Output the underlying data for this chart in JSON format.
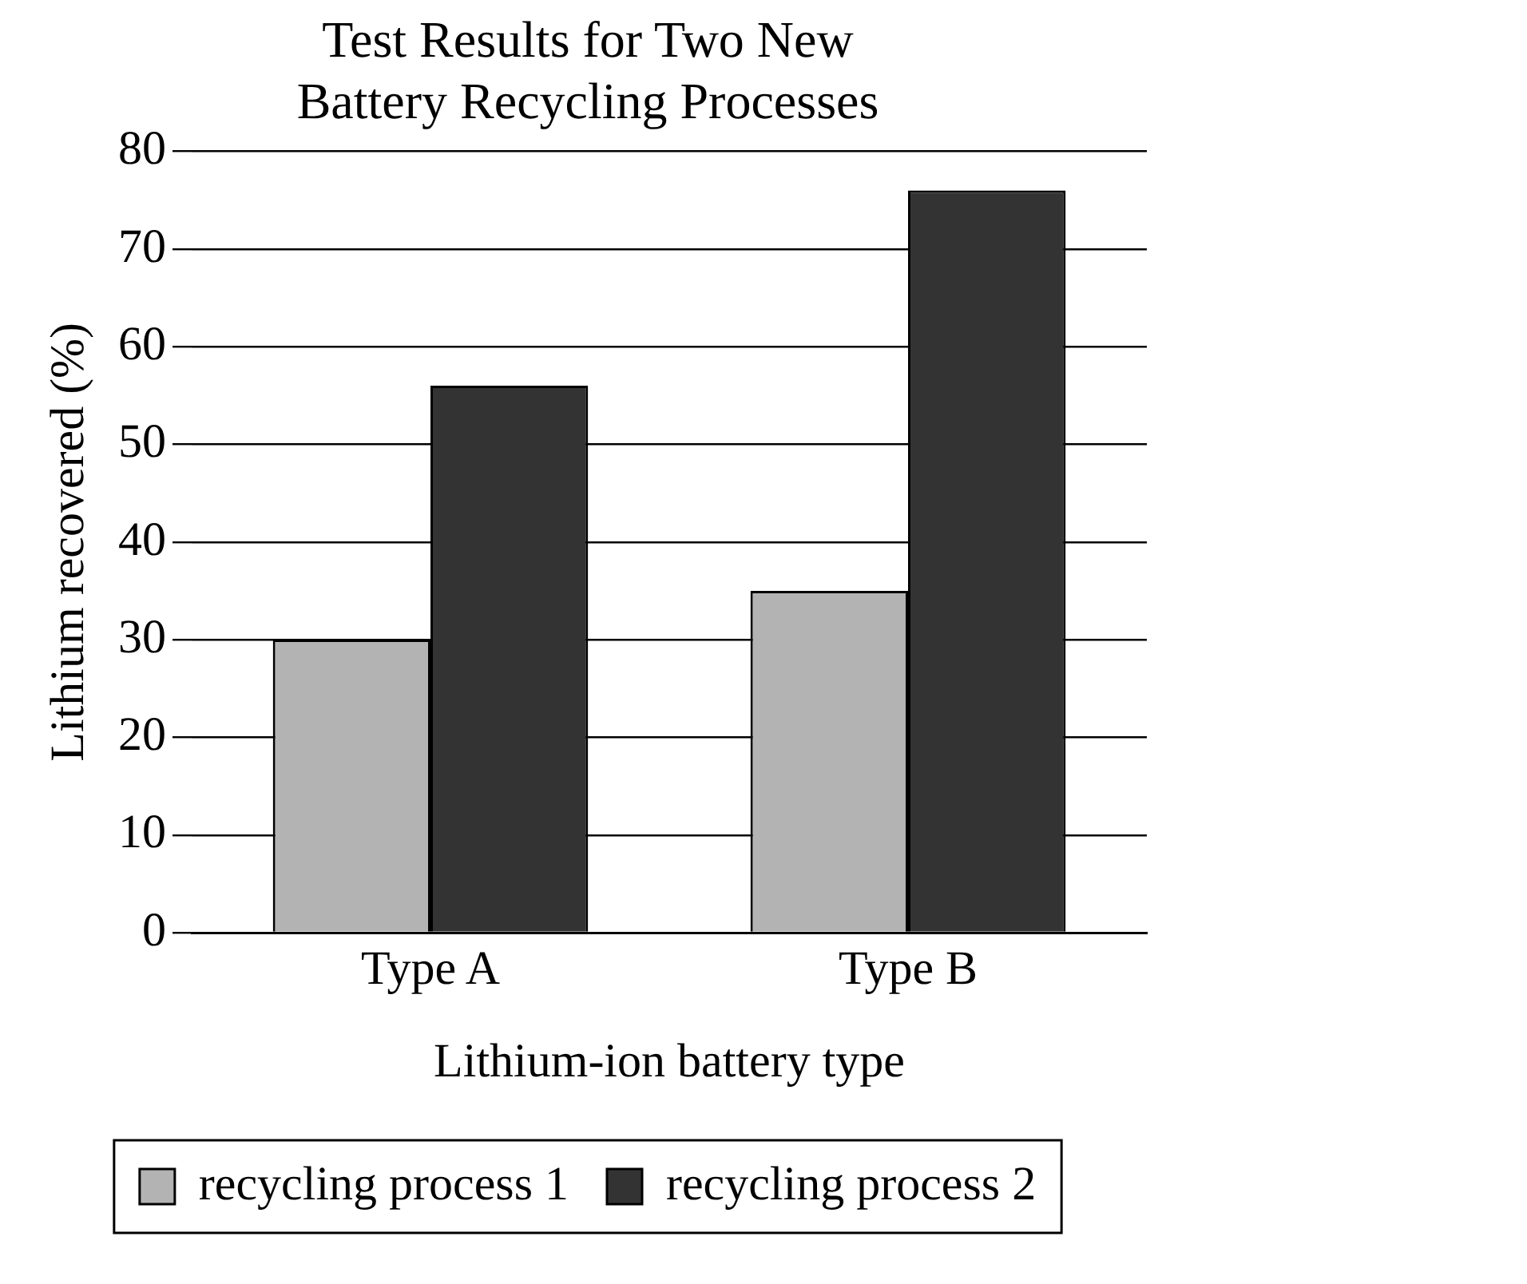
{
  "chart_data": {
    "type": "bar",
    "title": [
      "Test Results for Two New",
      "Battery Recycling Processes"
    ],
    "xlabel": "Lithium-ion battery type",
    "ylabel": "Lithium recovered (%)",
    "categories": [
      "Type A",
      "Type B"
    ],
    "series": [
      {
        "name": "recycling process 1",
        "color": "#b3b3b3",
        "values": [
          30,
          35
        ]
      },
      {
        "name": "recycling process 2",
        "color": "#333333",
        "values": [
          56,
          76
        ]
      }
    ],
    "ylim": [
      0,
      80
    ],
    "yticks": [
      0,
      10,
      20,
      30,
      40,
      50,
      60,
      70,
      80
    ],
    "grid": "y",
    "legend": "bottom"
  }
}
